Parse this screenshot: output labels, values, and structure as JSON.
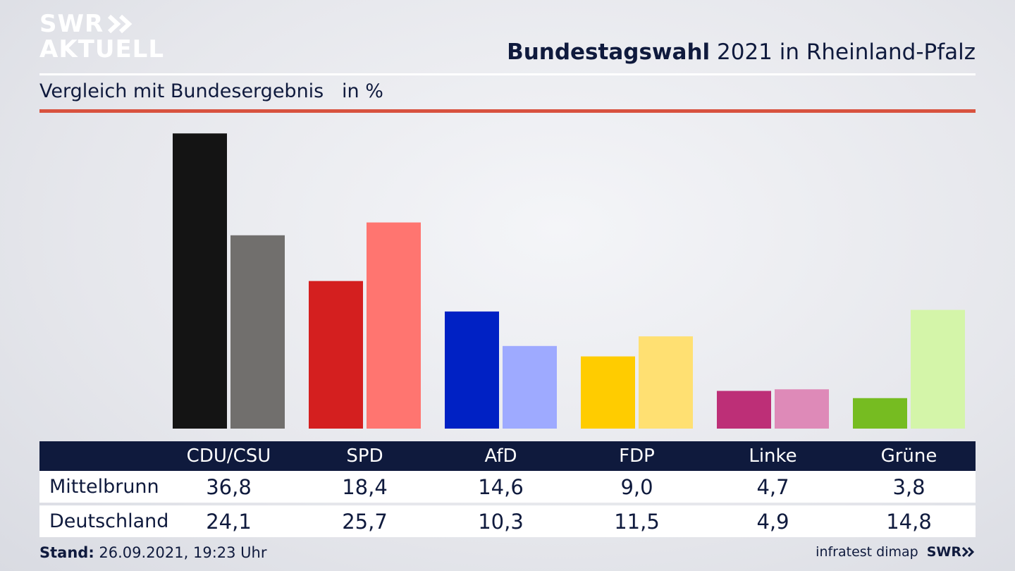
{
  "header": {
    "logo_line1": "SWR",
    "logo_line2": "AKTUELL",
    "title_bold": "Bundestagswahl",
    "title_rest": " 2021 in Rheinland-Pfalz",
    "subtitle": "Vergleich mit Bundesergebnis   in %"
  },
  "chart_data": {
    "type": "bar",
    "title": "Bundestagswahl 2021 in Rheinland-Pfalz",
    "subtitle": "Vergleich mit Bundesergebnis in %",
    "categories": [
      "CDU/CSU",
      "SPD",
      "AfD",
      "FDP",
      "Linke",
      "Grüne"
    ],
    "series": [
      {
        "name": "Mittelbrunn",
        "values": [
          36.8,
          18.4,
          14.6,
          9.0,
          4.7,
          3.8
        ]
      },
      {
        "name": "Deutschland",
        "values": [
          24.1,
          25.7,
          10.3,
          11.5,
          4.9,
          14.8
        ]
      }
    ],
    "colors_primary": [
      "#141414",
      "#d41f1f",
      "#0021c4",
      "#ffcc00",
      "#bd2f77",
      "#76bc21"
    ],
    "colors_secondary": [
      "#716f6d",
      "#ff7570",
      "#9eaaff",
      "#ffe072",
      "#de8ab8",
      "#d4f5a9"
    ],
    "ylim": [
      0,
      37
    ]
  },
  "table": {
    "headers": [
      "CDU/CSU",
      "SPD",
      "AfD",
      "FDP",
      "Linke",
      "Grüne"
    ],
    "row1_label": "Mittelbrunn",
    "row1": [
      "36,8",
      "18,4",
      "14,6",
      "9,0",
      "4,7",
      "3,8"
    ],
    "row2_label": "Deutschland",
    "row2": [
      "24,1",
      "25,7",
      "10,3",
      "11,5",
      "4,9",
      "14,8"
    ]
  },
  "footer": {
    "stand_label": "Stand:",
    "stand_value": " 26.09.2021, 19:23 Uhr",
    "source": "infratest dimap",
    "brand": "SWR"
  }
}
